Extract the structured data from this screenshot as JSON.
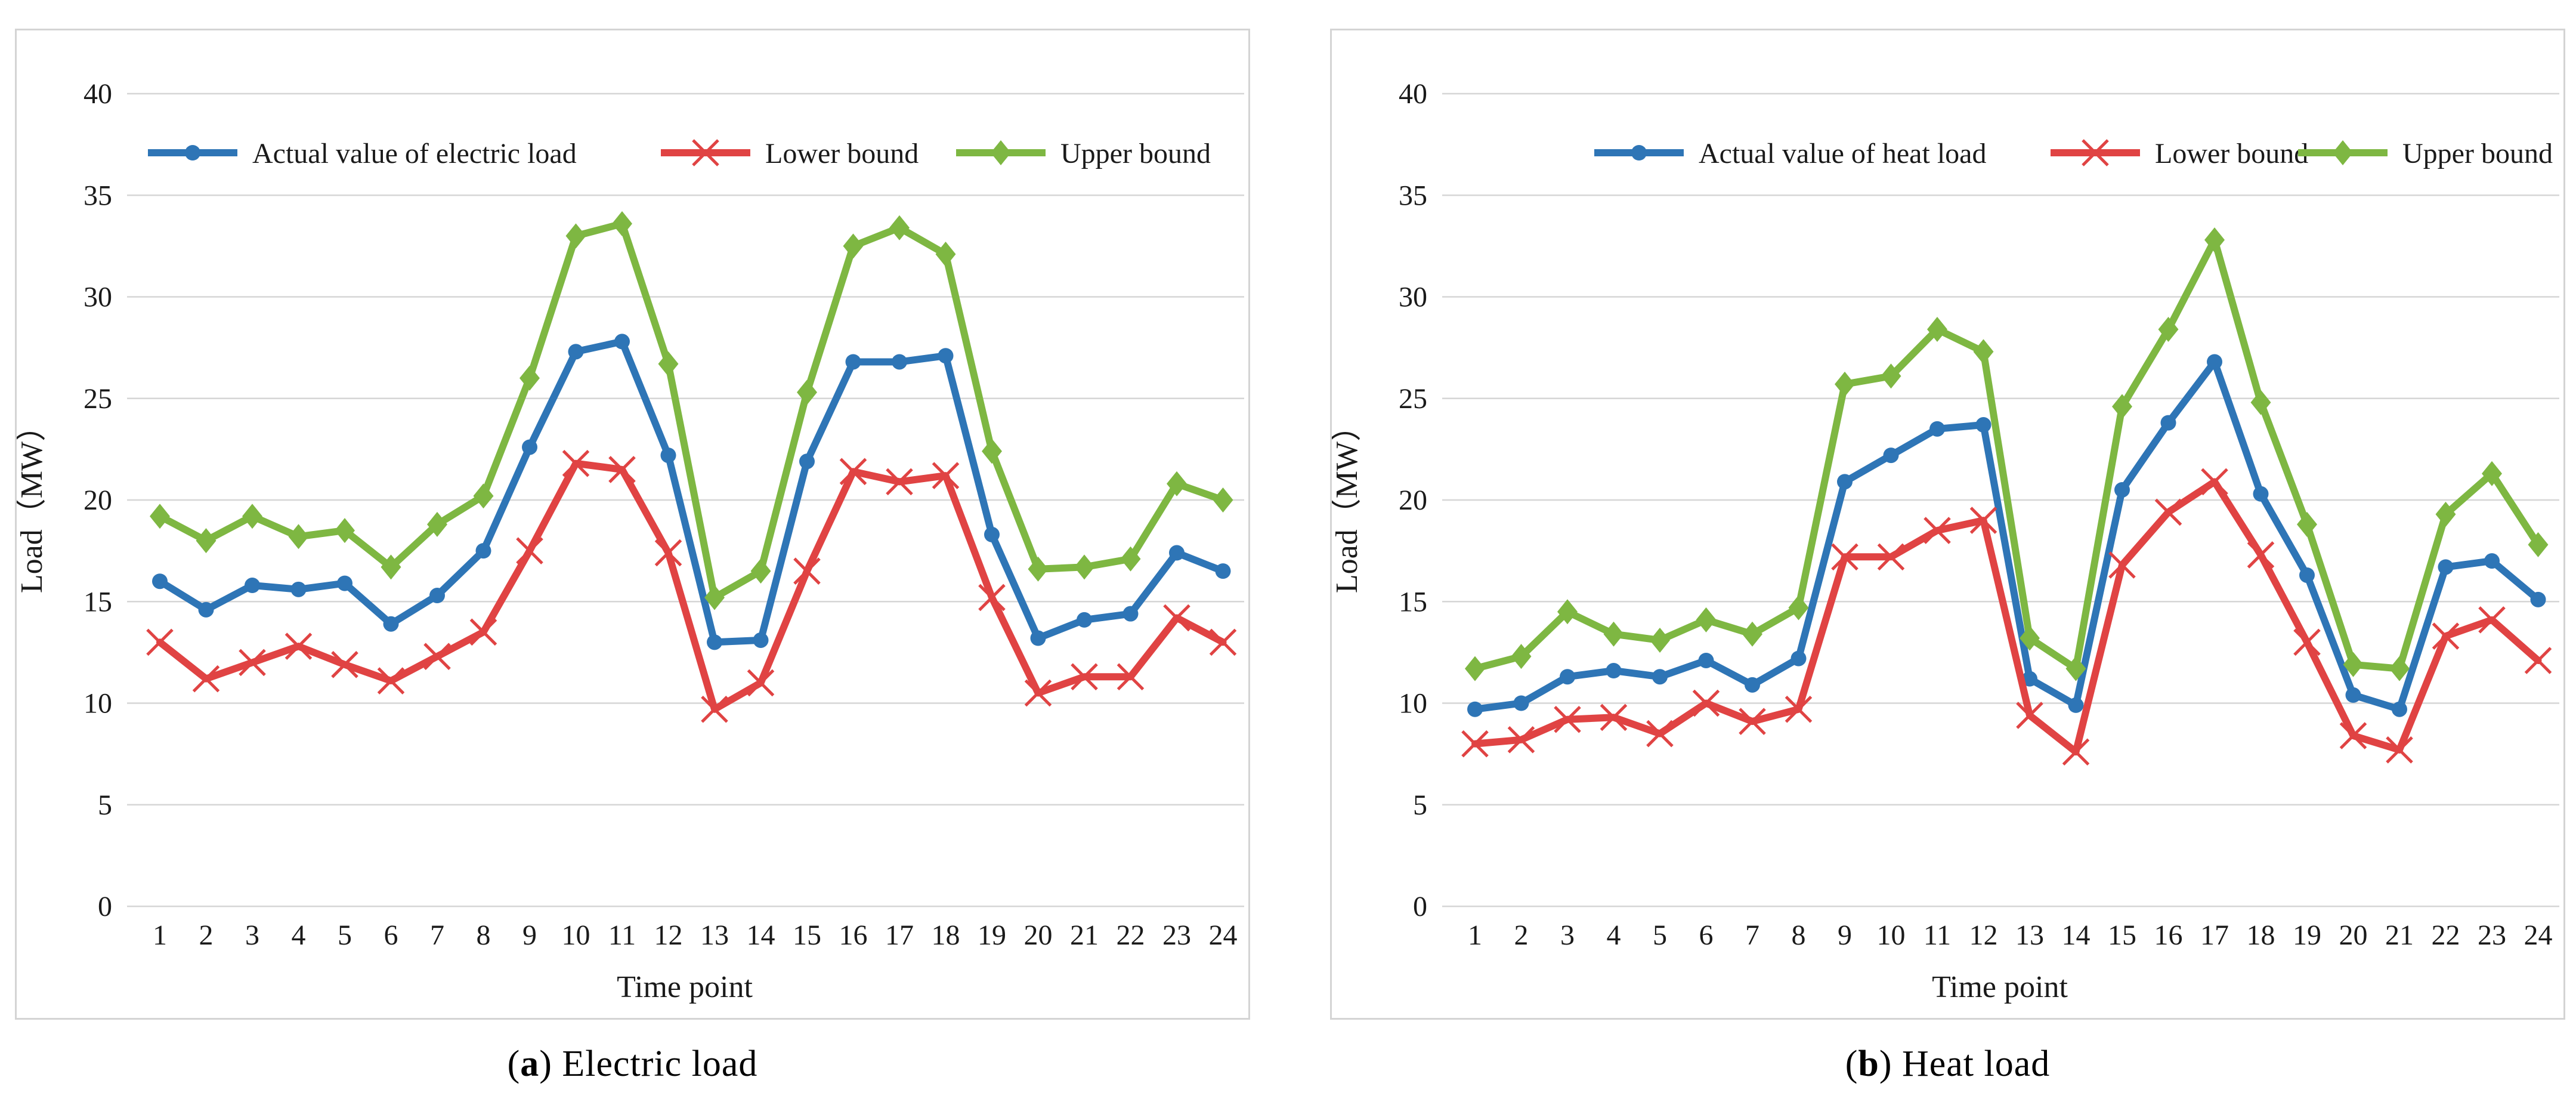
{
  "panels": [
    {
      "caption_open": "(",
      "caption_letter": "a",
      "caption_rest": ") Electric load"
    },
    {
      "caption_open": "(",
      "caption_letter": "b",
      "caption_rest": ") Heat load"
    }
  ],
  "colors": {
    "actual": "#2E75B6",
    "lower": "#E04343",
    "upper": "#7EB742",
    "gridline": "#D6D6D6",
    "text": "#1A1A1A"
  },
  "chart_data": [
    {
      "type": "line",
      "title": "(a) Electric load",
      "xlabel": "Time point",
      "ylabel": "Load（MW）",
      "ylim": [
        0,
        40
      ],
      "y_ticks": [
        0,
        5,
        10,
        15,
        20,
        25,
        30,
        35,
        40
      ],
      "grid": true,
      "legend_position": "top",
      "x": [
        1,
        2,
        3,
        4,
        5,
        6,
        7,
        8,
        9,
        10,
        11,
        12,
        13,
        14,
        15,
        16,
        17,
        18,
        19,
        20,
        21,
        22,
        23,
        24
      ],
      "series": [
        {
          "name": "Actual value of electric load",
          "color": "#2E75B6",
          "marker": "circle",
          "values": [
            16.0,
            14.6,
            15.8,
            15.6,
            15.9,
            13.9,
            15.3,
            17.5,
            22.6,
            27.3,
            27.8,
            22.2,
            13.0,
            13.1,
            21.9,
            26.8,
            26.8,
            27.1,
            18.3,
            13.2,
            14.1,
            14.4,
            17.4,
            16.5
          ]
        },
        {
          "name": "Lower bound",
          "color": "#E04343",
          "marker": "x",
          "values": [
            13.0,
            11.2,
            12.0,
            12.8,
            11.9,
            11.1,
            12.3,
            13.5,
            17.5,
            21.8,
            21.5,
            17.4,
            9.7,
            11.0,
            16.5,
            21.4,
            20.9,
            21.2,
            15.2,
            10.5,
            11.3,
            11.3,
            14.2,
            13.0
          ]
        },
        {
          "name": "Upper bound",
          "color": "#7EB742",
          "marker": "diamond",
          "values": [
            19.2,
            18.0,
            19.2,
            18.2,
            18.5,
            16.7,
            18.8,
            20.2,
            26.0,
            33.0,
            33.6,
            26.7,
            15.2,
            16.5,
            25.3,
            32.5,
            33.4,
            32.1,
            22.4,
            16.6,
            16.7,
            17.1,
            20.8,
            20.0
          ]
        }
      ]
    },
    {
      "type": "line",
      "title": "(b) Heat load",
      "xlabel": "Time point",
      "ylabel": "Load（MW）",
      "ylim": [
        0,
        40
      ],
      "y_ticks": [
        0,
        5,
        10,
        15,
        20,
        25,
        30,
        35,
        40
      ],
      "grid": true,
      "legend_position": "top",
      "x": [
        1,
        2,
        3,
        4,
        5,
        6,
        7,
        8,
        9,
        10,
        11,
        12,
        13,
        14,
        15,
        16,
        17,
        18,
        19,
        20,
        21,
        22,
        23,
        24
      ],
      "series": [
        {
          "name": "Actual value of heat load",
          "color": "#2E75B6",
          "marker": "circle",
          "values": [
            9.7,
            10.0,
            11.3,
            11.6,
            11.3,
            12.1,
            10.9,
            12.2,
            20.9,
            22.2,
            23.5,
            23.7,
            11.2,
            9.9,
            20.5,
            23.8,
            26.8,
            20.3,
            16.3,
            10.4,
            9.7,
            16.7,
            17.0,
            15.1
          ]
        },
        {
          "name": "Lower bound",
          "color": "#E04343",
          "marker": "x",
          "values": [
            8.0,
            8.2,
            9.2,
            9.3,
            8.5,
            10.0,
            9.1,
            9.7,
            17.2,
            17.2,
            18.5,
            19.0,
            9.4,
            7.6,
            16.8,
            19.4,
            20.9,
            17.3,
            13.0,
            8.4,
            7.7,
            13.3,
            14.1,
            12.1
          ]
        },
        {
          "name": "Upper bound",
          "color": "#7EB742",
          "marker": "diamond",
          "values": [
            11.7,
            12.3,
            14.5,
            13.4,
            13.1,
            14.1,
            13.4,
            14.7,
            25.7,
            26.1,
            28.4,
            27.3,
            13.2,
            11.7,
            24.6,
            28.4,
            32.8,
            24.8,
            18.8,
            11.9,
            11.7,
            19.3,
            21.3,
            17.8
          ]
        }
      ]
    }
  ]
}
